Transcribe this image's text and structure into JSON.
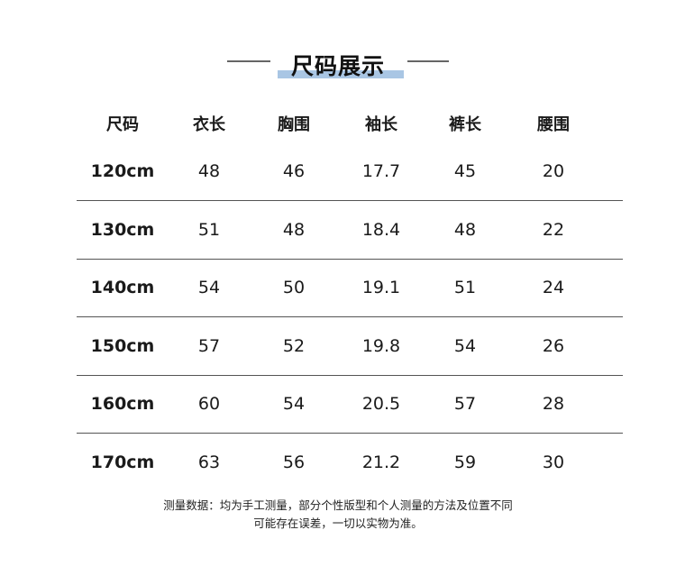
{
  "title": "尺码展示",
  "headers": [
    "尺码",
    "衣长",
    "胸围",
    "袖长",
    "裤长",
    "腰围"
  ],
  "rows": [
    [
      "120cm",
      "48",
      "46",
      "17.7",
      "45",
      "20"
    ],
    [
      "130cm",
      "51",
      "48",
      "18.4",
      "48",
      "22"
    ],
    [
      "140cm",
      "54",
      "50",
      "19.1",
      "51",
      "24"
    ],
    [
      "150cm",
      "57",
      "52",
      "19.8",
      "54",
      "26"
    ],
    [
      "160cm",
      "60",
      "54",
      "20.5",
      "57",
      "28"
    ],
    [
      "170cm",
      "63",
      "56",
      "21.2",
      "59",
      "30"
    ]
  ],
  "note": {
    "line1": "测量数据：均为手工测量，部分个性版型和个人测量的方法及位置不同",
    "line2": "可能存在误差，一切以实物为准。"
  },
  "colors": {
    "title_highlight": "#a9c6e4",
    "divider": "#555555"
  }
}
